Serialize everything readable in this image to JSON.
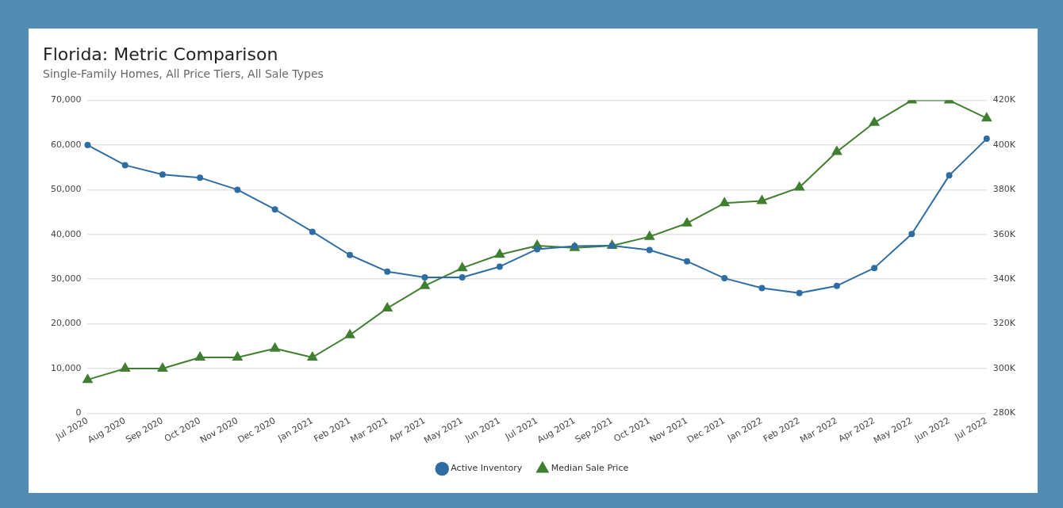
{
  "chart_data": {
    "type": "line",
    "title": "Florida: Metric Comparison",
    "subtitle": "Single-Family Homes, All Price Tiers, All Sale Types",
    "categories": [
      "Jul 2020",
      "Aug 2020",
      "Sep 2020",
      "Oct 2020",
      "Nov 2020",
      "Dec 2020",
      "Jan 2021",
      "Feb 2021",
      "Mar 2021",
      "Apr 2021",
      "May 2021",
      "Jun 2021",
      "Jul 2021",
      "Aug 2021",
      "Sep 2021",
      "Oct 2021",
      "Nov 2021",
      "Dec 2021",
      "Jan 2022",
      "Feb 2022",
      "Mar 2022",
      "Apr 2022",
      "May 2022",
      "Jun 2022",
      "Jul 2022"
    ],
    "series": [
      {
        "name": "Active Inventory",
        "color": "#2e6da4",
        "marker": "circle",
        "values": [
          60000,
          55500,
          53400,
          52700,
          50000,
          45600,
          40600,
          35400,
          31700,
          30400,
          30400,
          32800,
          36700,
          37400,
          37500,
          36500,
          34000,
          30200,
          28000,
          26900,
          28500,
          32500,
          40100,
          53200,
          61400
        ]
      },
      {
        "name": "Median Sale Price",
        "color": "#3f7f2f",
        "marker": "triangle",
        "axis": "y2",
        "values": [
          295000,
          300000,
          300000,
          305000,
          305000,
          309000,
          305000,
          315000,
          327000,
          337000,
          345000,
          351000,
          355000,
          354000,
          355000,
          359000,
          365000,
          374000,
          375000,
          381000,
          397000,
          410000,
          420000,
          420000,
          412000
        ]
      }
    ],
    "ylim": [
      0,
      70000
    ],
    "yticks": [
      0,
      {
        "value": 10000,
        "label": "10,000"
      },
      {
        "value": 20000,
        "label": "20,000"
      },
      {
        "value": 30000,
        "label": "30,000"
      },
      {
        "value": 40000,
        "label": "40,000"
      },
      {
        "value": 50000,
        "label": "50,000"
      },
      {
        "value": 60000,
        "label": "60,000"
      },
      {
        "value": 70000,
        "label": "70,000"
      }
    ],
    "y2lim": [
      280000,
      420000
    ],
    "y2ticks": [
      {
        "value": 280000,
        "label": "280K"
      },
      {
        "value": 300000,
        "label": "300K"
      },
      {
        "value": 320000,
        "label": "320K"
      },
      {
        "value": 340000,
        "label": "340K"
      },
      {
        "value": 360000,
        "label": "360K"
      },
      {
        "value": 380000,
        "label": "380K"
      },
      {
        "value": 400000,
        "label": "400K"
      },
      {
        "value": 420000,
        "label": "420K"
      }
    ],
    "grid": "y",
    "legend": "bottom",
    "line_style": "solid"
  }
}
